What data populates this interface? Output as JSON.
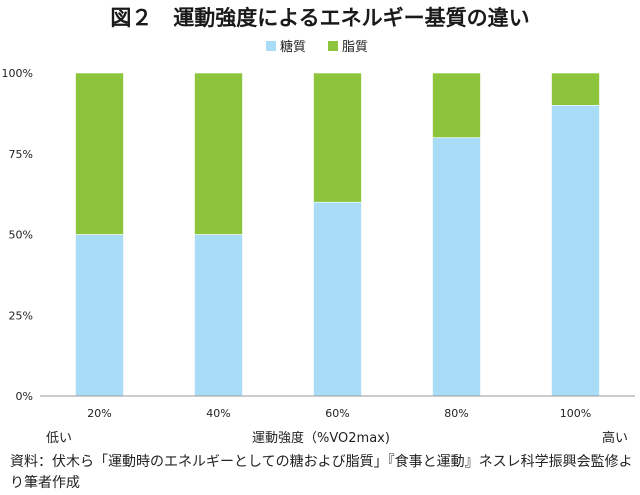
{
  "chart_data": {
    "type": "bar",
    "stacked": true,
    "title": "図２　運動強度によるエネルギー基質の違い",
    "categories": [
      "20%",
      "40%",
      "60%",
      "80%",
      "100%"
    ],
    "series": [
      {
        "name": "糖質",
        "color": "#a8dcf7",
        "values": [
          50,
          50,
          60,
          80,
          90
        ]
      },
      {
        "name": "脂質",
        "color": "#8cc43c",
        "values": [
          50,
          50,
          40,
          20,
          10
        ]
      }
    ],
    "ylim": [
      0,
      100
    ],
    "yticks": [
      "0%",
      "25%",
      "50%",
      "75%",
      "100%"
    ],
    "xlabel": "運動強度（%VO2max)",
    "x_low_label": "低い",
    "x_high_label": "高い",
    "legend_position": "top-center",
    "grid": false
  },
  "source_note": "資料：伏木ら「運動時のエネルギーとしての糖および脂質」『食事と運動』ネスレ科学振興会監修より筆者作成"
}
